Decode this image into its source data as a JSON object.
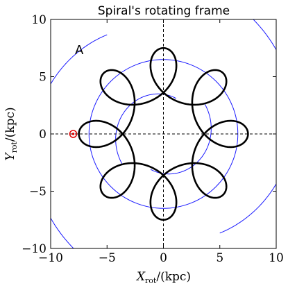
{
  "chart_data": {
    "type": "line",
    "title": "Spiral's rotating frame",
    "panel_label": "A",
    "xlabel": "X",
    "xlabel_sub": "rot",
    "xlabel_unit": "/(kpc)",
    "ylabel": "Y",
    "ylabel_sub": "rot",
    "ylabel_unit": "/(kpc)",
    "xlim": [
      -10,
      10
    ],
    "ylim": [
      -10,
      10
    ],
    "xticks": [
      -10,
      -5,
      0,
      5,
      10
    ],
    "yticks": [
      -10,
      -5,
      0,
      5,
      10
    ],
    "xtick_labels": [
      "−10",
      "−5",
      "0",
      "5",
      "10"
    ],
    "ytick_labels": [
      "−10",
      "−5",
      "0",
      "5",
      "10"
    ],
    "reference_lines": {
      "x": 0,
      "y": 0,
      "style": "dashed"
    },
    "orbit": {
      "color": "#000000",
      "loops": 6,
      "mean_radius": 5.3,
      "loop_amplitude": 2.2,
      "start_point": [
        -8.0,
        0.0
      ]
    },
    "start_marker": {
      "x": -8.0,
      "y": 0.0,
      "color": "#e00000"
    },
    "spiral_arms": {
      "color": "#1a1aff",
      "circle_radius": 6.6,
      "inner_arcs": [
        {
          "radius_start": 3.3,
          "radius_end": 4.5,
          "angle_start_deg": 70,
          "angle_end_deg": 215
        },
        {
          "radius_start": 3.3,
          "radius_end": 4.5,
          "angle_start_deg": 250,
          "angle_end_deg": 395
        }
      ],
      "outer_arcs": [
        {
          "radius_start": 10.0,
          "radius_end": 13.0,
          "angle_start_deg": 300,
          "angle_end_deg": 420
        },
        {
          "radius_start": 10.0,
          "radius_end": 13.0,
          "angle_start_deg": 120,
          "angle_end_deg": 240
        }
      ]
    }
  }
}
